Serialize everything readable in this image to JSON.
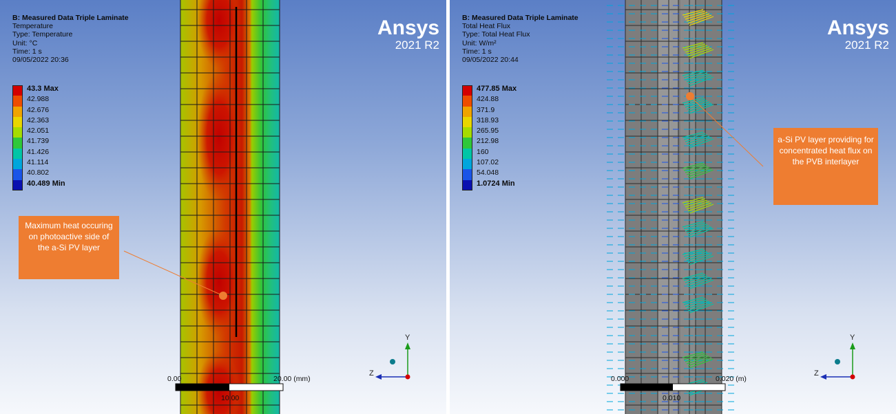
{
  "left": {
    "title": "B: Measured Data Triple Laminate",
    "lines": [
      "Temperature",
      "Type: Temperature",
      "Unit: °C",
      "Time: 1 s",
      "09/05/2022 20:36"
    ],
    "legend": [
      {
        "label": "43.3 Max",
        "color": "#d40000",
        "bold": true
      },
      {
        "label": "42.988",
        "color": "#ee4d00"
      },
      {
        "label": "42.676",
        "color": "#f0a400"
      },
      {
        "label": "42.363",
        "color": "#e9d600"
      },
      {
        "label": "42.051",
        "color": "#a6dc00"
      },
      {
        "label": "41.739",
        "color": "#2fc83a"
      },
      {
        "label": "41.426",
        "color": "#00c5a6"
      },
      {
        "label": "41.114",
        "color": "#00a6dc"
      },
      {
        "label": "40.802",
        "color": "#1a55e8"
      },
      {
        "label": "40.489 Min",
        "color": "#0a10b0",
        "bold": true
      }
    ],
    "brand": "Ansys",
    "version": "2021 R2",
    "callout": "Maximum heat occuring on photoactive side of the a-Si PV layer",
    "scale": {
      "start": "0.00",
      "end": "20.00 (mm)",
      "mid": "10.00"
    }
  },
  "right": {
    "title": "B: Measured Data Triple Laminate",
    "lines": [
      "Total Heat Flux",
      "Type: Total Heat Flux",
      "Unit: W/m²",
      "Time: 1 s",
      "09/05/2022 20:44"
    ],
    "legend": [
      {
        "label": "477.85 Max",
        "color": "#d40000",
        "bold": true
      },
      {
        "label": "424.88",
        "color": "#ee4d00"
      },
      {
        "label": "371.9",
        "color": "#f0a400"
      },
      {
        "label": "318.93",
        "color": "#e9d600"
      },
      {
        "label": "265.95",
        "color": "#a6dc00"
      },
      {
        "label": "212.98",
        "color": "#2fc83a"
      },
      {
        "label": "160",
        "color": "#00c5a6"
      },
      {
        "label": "107.02",
        "color": "#00a6dc"
      },
      {
        "label": "54.048",
        "color": "#1a55e8"
      },
      {
        "label": "1.0724 Min",
        "color": "#0a10b0",
        "bold": true
      }
    ],
    "brand": "Ansys",
    "version": "2021 R2",
    "callout": "a-Si PV layer providing for concentrated heat flux on the PVB interlayer",
    "scale": {
      "start": "0.000",
      "end": "0.020 (m)",
      "mid": "0.010"
    }
  },
  "axes": {
    "y": "Y",
    "z": "Z"
  }
}
